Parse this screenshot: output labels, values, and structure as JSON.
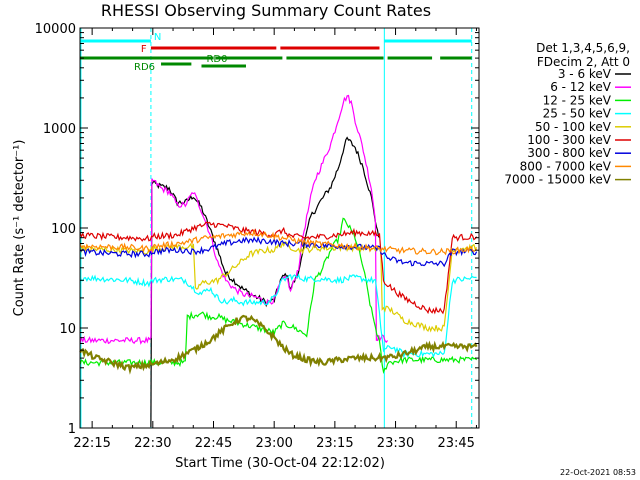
{
  "chart_data": {
    "type": "line",
    "title": "RHESSI Observing Summary Count Rates",
    "xlabel": "Start Time (30-Oct-04 22:12:02)",
    "ylabel": "Count Rate (s⁻¹ detector⁻¹)",
    "yscale": "log",
    "ylim": [
      1,
      10000
    ],
    "xlim_minutes": [
      -0.03,
      98.6
    ],
    "x_unit": "minutes after 22:12:02",
    "x_ticks": [
      {
        "label": "22:15",
        "t": 2.97
      },
      {
        "label": "22:30",
        "t": 17.97
      },
      {
        "label": "22:45",
        "t": 32.97
      },
      {
        "label": "23:00",
        "t": 47.97
      },
      {
        "label": "23:15",
        "t": 62.97
      },
      {
        "label": "23:30",
        "t": 77.97
      },
      {
        "label": "23:45",
        "t": 92.97
      }
    ],
    "y_ticks": [
      {
        "label": "1",
        "v": 1
      },
      {
        "label": "10",
        "v": 10
      },
      {
        "label": "100",
        "v": 100
      },
      {
        "label": "1000",
        "v": 1000
      },
      {
        "label": "10000",
        "v": 10000
      }
    ],
    "legend": {
      "placement": "right",
      "header": [
        "Det 1,3,4,5,6,9,",
        "FDecim 2, Att 0"
      ]
    },
    "series": [
      {
        "name": "3 - 6 keV",
        "color": "#000000",
        "points": [
          [
            17.5,
            1
          ],
          [
            18,
            280
          ],
          [
            20,
            260
          ],
          [
            22,
            250
          ],
          [
            24,
            180
          ],
          [
            26,
            180
          ],
          [
            28,
            210
          ],
          [
            30,
            160
          ],
          [
            32,
            100
          ],
          [
            34,
            60
          ],
          [
            36,
            35
          ],
          [
            38,
            30
          ],
          [
            40,
            25
          ],
          [
            42,
            22
          ],
          [
            44,
            20
          ],
          [
            46,
            18
          ],
          [
            48,
            19
          ],
          [
            49.5,
            30
          ],
          [
            51,
            35
          ],
          [
            52,
            25
          ],
          [
            54,
            35
          ],
          [
            55,
            60
          ],
          [
            57,
            130
          ],
          [
            58,
            150
          ],
          [
            60,
            200
          ],
          [
            62,
            260
          ],
          [
            64,
            420
          ],
          [
            65,
            600
          ],
          [
            66,
            780
          ],
          [
            68,
            640
          ],
          [
            70,
            400
          ],
          [
            72,
            200
          ],
          [
            73,
            120
          ],
          [
            73.5,
            90
          ],
          [
            74,
            80
          ]
        ]
      },
      {
        "name": "6 - 12 keV",
        "color": "#ff00ff",
        "points": [
          [
            0,
            7.5
          ],
          [
            10,
            7.5
          ],
          [
            16,
            7.5
          ],
          [
            17.5,
            7.5
          ],
          [
            18,
            300
          ],
          [
            20,
            250
          ],
          [
            22,
            230
          ],
          [
            24,
            170
          ],
          [
            26,
            170
          ],
          [
            28,
            230
          ],
          [
            30,
            150
          ],
          [
            32,
            90
          ],
          [
            34,
            45
          ],
          [
            36,
            30
          ],
          [
            38,
            25
          ],
          [
            40,
            22
          ],
          [
            42,
            21
          ],
          [
            44,
            20
          ],
          [
            46,
            18
          ],
          [
            48,
            19
          ],
          [
            49.5,
            28
          ],
          [
            51,
            33
          ],
          [
            52,
            23
          ],
          [
            54,
            40
          ],
          [
            55,
            80
          ],
          [
            57,
            200
          ],
          [
            58,
            300
          ],
          [
            60,
            450
          ],
          [
            62,
            700
          ],
          [
            64,
            1300
          ],
          [
            65,
            1800
          ],
          [
            66,
            2100
          ],
          [
            67,
            1800
          ],
          [
            68,
            1200
          ],
          [
            70,
            600
          ],
          [
            72,
            250
          ],
          [
            73,
            120
          ],
          [
            73.5,
            8
          ],
          [
            75,
            8
          ],
          [
            76,
            7.5
          ]
        ]
      },
      {
        "name": "12 - 25 keV",
        "color": "#00ee00",
        "points": [
          [
            0,
            4.5
          ],
          [
            10,
            4.5
          ],
          [
            17,
            4.5
          ],
          [
            18,
            4.5
          ],
          [
            26,
            4.5
          ],
          [
            26.5,
            13
          ],
          [
            30,
            14
          ],
          [
            32,
            13
          ],
          [
            34,
            13
          ],
          [
            36,
            12
          ],
          [
            40,
            11
          ],
          [
            44,
            10
          ],
          [
            46,
            9.5
          ],
          [
            48,
            9
          ],
          [
            50,
            11
          ],
          [
            52,
            10.5
          ],
          [
            54,
            9.5
          ],
          [
            56,
            8.5
          ],
          [
            58,
            30
          ],
          [
            60,
            40
          ],
          [
            62,
            60
          ],
          [
            64,
            80
          ],
          [
            65,
            120
          ],
          [
            66,
            110
          ],
          [
            68,
            80
          ],
          [
            70,
            40
          ],
          [
            72,
            15
          ],
          [
            74,
            7
          ],
          [
            75,
            3.5
          ],
          [
            76,
            4.5
          ],
          [
            80,
            4.8
          ],
          [
            86,
            4.8
          ],
          [
            92,
            4.8
          ],
          [
            98,
            4.8
          ]
        ]
      },
      {
        "name": "25 - 50 keV",
        "color": "#00ffff",
        "points": [
          [
            0,
            32
          ],
          [
            6,
            31
          ],
          [
            12,
            30
          ],
          [
            17,
            28
          ],
          [
            18,
            30
          ],
          [
            22,
            31
          ],
          [
            26,
            30
          ],
          [
            28,
            25
          ],
          [
            30,
            22
          ],
          [
            32,
            25
          ],
          [
            34,
            20
          ],
          [
            36,
            18
          ],
          [
            38,
            19
          ],
          [
            40,
            18
          ],
          [
            42,
            18
          ],
          [
            44,
            18
          ],
          [
            46,
            18
          ],
          [
            48,
            20
          ],
          [
            50,
            30
          ],
          [
            52,
            33
          ],
          [
            56,
            31
          ],
          [
            60,
            31
          ],
          [
            64,
            30
          ],
          [
            68,
            32
          ],
          [
            72,
            30
          ],
          [
            73,
            30
          ],
          [
            75,
            6
          ],
          [
            77,
            6.5
          ],
          [
            80,
            5.5
          ],
          [
            86,
            5.5
          ],
          [
            90,
            5.5
          ],
          [
            92,
            30
          ],
          [
            96,
            31
          ],
          [
            98,
            32
          ]
        ]
      },
      {
        "name": "50 - 100 keV",
        "color": "#ddcc00",
        "points": [
          [
            0,
            62
          ],
          [
            10,
            60
          ],
          [
            17,
            58
          ],
          [
            18,
            62
          ],
          [
            24,
            65
          ],
          [
            28,
            65
          ],
          [
            28.5,
            24
          ],
          [
            30,
            28
          ],
          [
            34,
            30
          ],
          [
            38,
            40
          ],
          [
            42,
            55
          ],
          [
            46,
            60
          ],
          [
            48,
            60
          ],
          [
            50,
            70
          ],
          [
            54,
            60
          ],
          [
            60,
            63
          ],
          [
            66,
            64
          ],
          [
            72,
            62
          ],
          [
            74,
            60
          ],
          [
            75,
            16
          ],
          [
            77,
            15
          ],
          [
            80,
            12
          ],
          [
            86,
            10
          ],
          [
            90,
            10
          ],
          [
            92,
            62
          ],
          [
            98,
            64
          ]
        ]
      },
      {
        "name": "100 - 300 keV",
        "color": "#dd0000",
        "points": [
          [
            0,
            85
          ],
          [
            6,
            82
          ],
          [
            12,
            80
          ],
          [
            17,
            78
          ],
          [
            18,
            82
          ],
          [
            24,
            85
          ],
          [
            28,
            100
          ],
          [
            32,
            110
          ],
          [
            36,
            105
          ],
          [
            40,
            95
          ],
          [
            44,
            90
          ],
          [
            48,
            85
          ],
          [
            50,
            95
          ],
          [
            52,
            83
          ],
          [
            56,
            80
          ],
          [
            60,
            82
          ],
          [
            64,
            86
          ],
          [
            68,
            90
          ],
          [
            72,
            88
          ],
          [
            74,
            85
          ],
          [
            75,
            30
          ],
          [
            77,
            25
          ],
          [
            80,
            20
          ],
          [
            86,
            15
          ],
          [
            90,
            15
          ],
          [
            92,
            80
          ],
          [
            98,
            82
          ]
        ]
      },
      {
        "name": "300 - 800 keV",
        "color": "#0000dd",
        "points": [
          [
            0,
            58
          ],
          [
            6,
            56
          ],
          [
            12,
            55
          ],
          [
            17,
            55
          ],
          [
            18,
            58
          ],
          [
            22,
            60
          ],
          [
            26,
            60
          ],
          [
            28,
            58
          ],
          [
            32,
            62
          ],
          [
            36,
            70
          ],
          [
            40,
            75
          ],
          [
            44,
            75
          ],
          [
            48,
            73
          ],
          [
            50,
            70
          ],
          [
            54,
            70
          ],
          [
            58,
            68
          ],
          [
            62,
            66
          ],
          [
            66,
            66
          ],
          [
            70,
            64
          ],
          [
            74,
            62
          ],
          [
            76,
            50
          ],
          [
            80,
            45
          ],
          [
            86,
            44
          ],
          [
            90,
            44
          ],
          [
            92,
            58
          ],
          [
            98,
            58
          ]
        ]
      },
      {
        "name": "800 - 7000 keV",
        "color": "#ff8800",
        "points": [
          [
            0,
            66
          ],
          [
            6,
            65
          ],
          [
            12,
            64
          ],
          [
            17,
            62
          ],
          [
            18,
            65
          ],
          [
            22,
            68
          ],
          [
            26,
            72
          ],
          [
            30,
            78
          ],
          [
            34,
            82
          ],
          [
            38,
            86
          ],
          [
            42,
            90
          ],
          [
            46,
            86
          ],
          [
            50,
            80
          ],
          [
            54,
            74
          ],
          [
            58,
            70
          ],
          [
            62,
            68
          ],
          [
            66,
            66
          ],
          [
            70,
            64
          ],
          [
            74,
            62
          ],
          [
            78,
            60
          ],
          [
            82,
            59
          ],
          [
            86,
            58
          ],
          [
            90,
            58
          ],
          [
            94,
            60
          ],
          [
            98,
            62
          ]
        ]
      },
      {
        "name": "7000 - 15000 keV",
        "color": "#808000",
        "points": [
          [
            0,
            6
          ],
          [
            4,
            5
          ],
          [
            8,
            4.5
          ],
          [
            12,
            4
          ],
          [
            16,
            4.2
          ],
          [
            20,
            4.5
          ],
          [
            24,
            5
          ],
          [
            28,
            6
          ],
          [
            32,
            7.5
          ],
          [
            36,
            10
          ],
          [
            38,
            11.5
          ],
          [
            40,
            12.5
          ],
          [
            42,
            12.5
          ],
          [
            44,
            11
          ],
          [
            46,
            9.5
          ],
          [
            48,
            8
          ],
          [
            50,
            6.5
          ],
          [
            52,
            5.5
          ],
          [
            56,
            4.8
          ],
          [
            60,
            4.5
          ],
          [
            64,
            4.8
          ],
          [
            68,
            5
          ],
          [
            72,
            5
          ],
          [
            74,
            5
          ],
          [
            78,
            5.2
          ],
          [
            82,
            5.8
          ],
          [
            86,
            6.5
          ],
          [
            90,
            6.5
          ],
          [
            94,
            6.5
          ],
          [
            98,
            6.5
          ]
        ]
      }
    ],
    "annotations": {
      "vlines_solid": [
        0.2,
        75.2
      ],
      "vlines_dashed": [
        17.5,
        96.8
      ],
      "bars": [
        {
          "label": "N",
          "color": "#00ffff",
          "segments": [
            [
              0.2,
              17.5
            ],
            [
              75.2,
              96.8
            ]
          ]
        },
        {
          "label": "F",
          "color": "#dd0000",
          "segments": [
            [
              17.5,
              48.5
            ],
            [
              49.5,
              74
            ]
          ]
        },
        {
          "label": "",
          "color": "#008800",
          "segments": [
            [
              0,
              33
            ],
            [
              33.5,
              50
            ],
            [
              51,
              75
            ],
            [
              76,
              87
            ],
            [
              89,
              96.8
            ]
          ]
        },
        {
          "label": "RD0",
          "color": "#008800",
          "segments": [
            [
              30,
              41
            ]
          ]
        },
        {
          "label": "RD6",
          "color": "#008800",
          "segments": [
            [
              20,
              27.5
            ]
          ]
        }
      ]
    }
  },
  "timestamp": "22-Oct-2021 08:53"
}
